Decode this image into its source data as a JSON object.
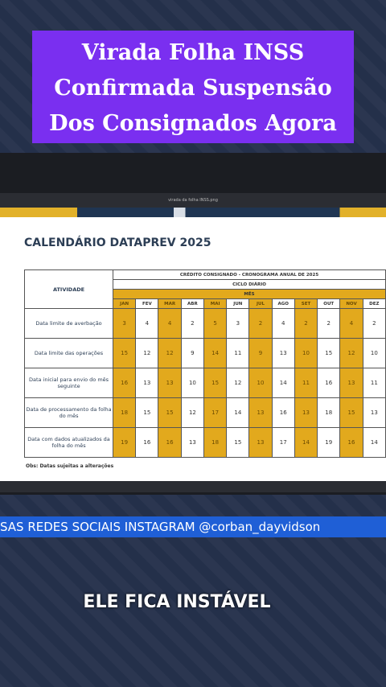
{
  "banner": {
    "lines": [
      "Virada Folha INSS",
      "Confirmada Suspensão",
      "Dos Consignados Agora"
    ]
  },
  "viewer": {
    "filename": "virada da folha INSS.png"
  },
  "document": {
    "title": "CALENDÁRIO DATAPREV 2025",
    "table": {
      "header": "CRÉDITO CONSIGNADO - CRONOGRAMA ANUAL DE 2025",
      "cycle": "CICLO DIÁRIO",
      "month_label": "MÊS",
      "activity_label": "ATIVIDADE",
      "months": [
        "JAN",
        "FEV",
        "MAR",
        "ABR",
        "MAI",
        "JUN",
        "JUL",
        "AGO",
        "SET",
        "OUT",
        "NOV",
        "DEZ"
      ],
      "rows": [
        {
          "activity": "Data limite de averbação",
          "values": [
            3,
            4,
            4,
            2,
            5,
            3,
            2,
            4,
            2,
            2,
            4,
            2
          ]
        },
        {
          "activity": "Data limite das operações",
          "values": [
            15,
            12,
            12,
            9,
            14,
            11,
            9,
            13,
            10,
            15,
            12,
            10
          ]
        },
        {
          "activity": "Data inicial para envio do mês seguinte",
          "values": [
            16,
            13,
            13,
            10,
            15,
            12,
            10,
            14,
            11,
            16,
            13,
            11
          ]
        },
        {
          "activity": "Data de processamento da folha do mês",
          "values": [
            18,
            15,
            15,
            12,
            17,
            14,
            13,
            16,
            13,
            18,
            15,
            13
          ]
        },
        {
          "activity": "Data com dados atualizados da folha do mês",
          "values": [
            19,
            16,
            16,
            13,
            18,
            15,
            13,
            17,
            14,
            19,
            16,
            14
          ]
        }
      ]
    },
    "note": "Obs: Datas sujeitas a alterações"
  },
  "ticker": "SAS REDES SOCIAIS INSTAGRAM @corban_dayvidson",
  "caption": "ELE FICA INSTÁVEL"
}
